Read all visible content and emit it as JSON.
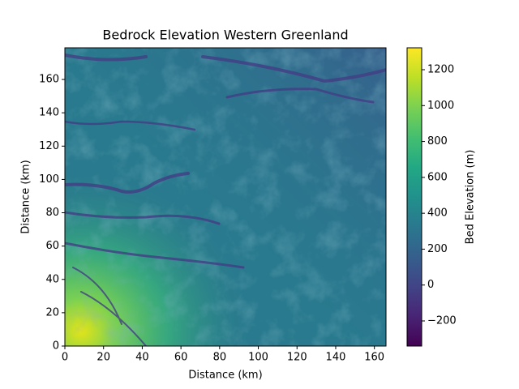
{
  "chart_data": {
    "type": "heatmap",
    "title": "Bedrock Elevation Western Greenland",
    "x_label": "Distance (km)",
    "y_label": "Distance (km)",
    "xlim": [
      0,
      166
    ],
    "xticks": [
      0,
      20,
      40,
      60,
      80,
      100,
      120,
      140,
      160
    ],
    "ylim": [
      0,
      179
    ],
    "yticks": [
      0,
      20,
      40,
      60,
      80,
      100,
      120,
      140,
      160
    ],
    "colormap": "viridis",
    "colorbar_label": "Bed Elevation (m)",
    "clim": [
      -340,
      1322
    ],
    "cticks": [
      {
        "value": -200,
        "label": "−200"
      },
      0,
      200,
      400,
      600,
      800,
      1000,
      1200
    ]
  }
}
